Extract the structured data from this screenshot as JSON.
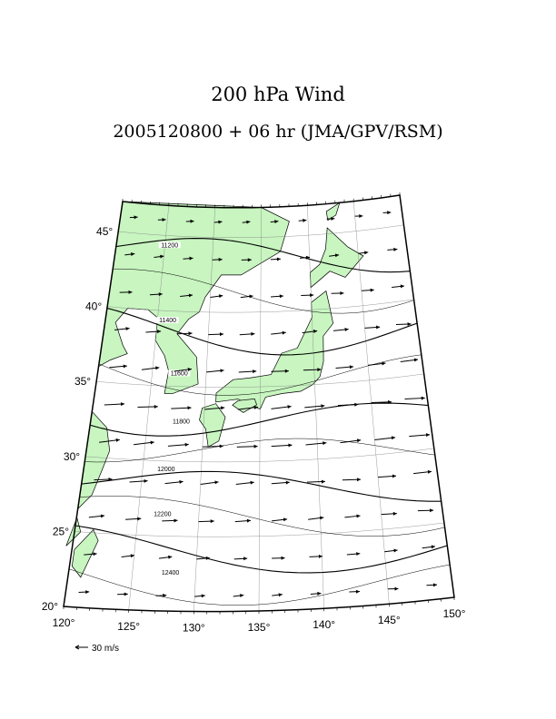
{
  "title": "200 hPa Wind",
  "subtitle": "2005120800 + 06 hr (JMA/GPV/RSM)",
  "map": {
    "lon_labels": [
      "120°",
      "125°",
      "130°",
      "135°",
      "140°",
      "145°",
      "150°"
    ],
    "lat_labels": [
      "20°",
      "25°",
      "30°",
      "35°",
      "40°",
      "45°"
    ],
    "contour_labels": [
      "11200",
      "11400",
      "11600",
      "11800",
      "12000",
      "12200",
      "12400"
    ],
    "land_color": "#c8f5c0",
    "coast_color": "#000000",
    "grid_color": "#808080"
  },
  "wind_scale": {
    "label": "30 m/s"
  }
}
